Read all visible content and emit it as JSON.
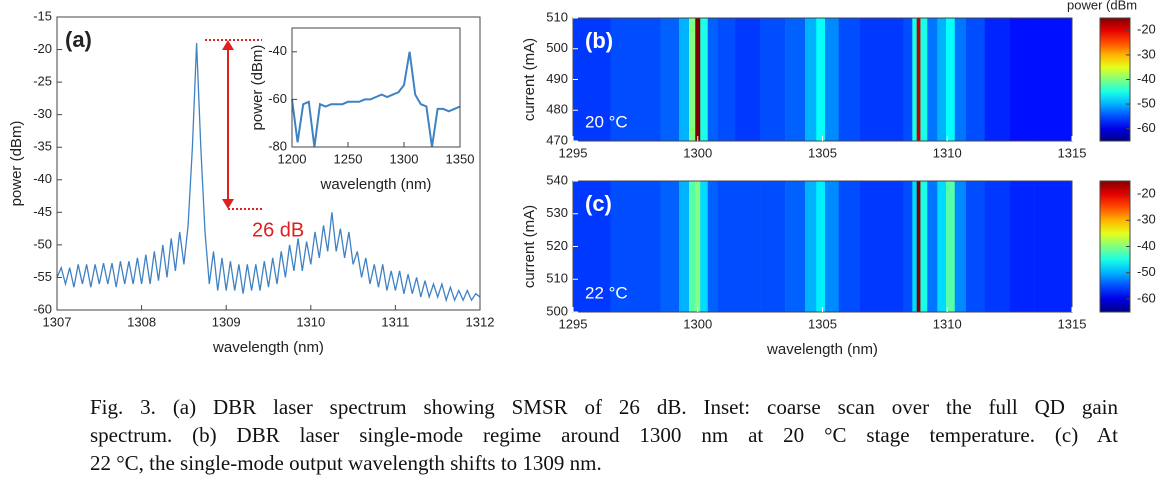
{
  "chart_data": [
    {
      "type": "line",
      "label": "(a)",
      "annotation": "26 dB",
      "xlabel": "wavelength (nm)",
      "ylabel": "power (dBm)",
      "color": "#3f82c4",
      "xlim": [
        1307,
        1312
      ],
      "xticks": [
        1307,
        1308,
        1309,
        1310,
        1311,
        1312
      ],
      "ylim": [
        -60,
        -15
      ],
      "yticks": [
        -60,
        -55,
        -50,
        -45,
        -40,
        -35,
        -30,
        -25,
        -20,
        -15
      ],
      "x": [
        1307.0,
        1307.05,
        1307.1,
        1307.15,
        1307.2,
        1307.25,
        1307.3,
        1307.35,
        1307.4,
        1307.45,
        1307.5,
        1307.55,
        1307.6,
        1307.65,
        1307.7,
        1307.75,
        1307.8,
        1307.85,
        1307.9,
        1307.95,
        1308.0,
        1308.05,
        1308.1,
        1308.15,
        1308.2,
        1308.25,
        1308.3,
        1308.35,
        1308.4,
        1308.45,
        1308.5,
        1308.55,
        1308.6,
        1308.65,
        1308.7,
        1308.75,
        1308.8,
        1308.85,
        1308.9,
        1308.95,
        1309.0,
        1309.05,
        1309.1,
        1309.15,
        1309.2,
        1309.25,
        1309.3,
        1309.35,
        1309.4,
        1309.45,
        1309.5,
        1309.55,
        1309.6,
        1309.65,
        1309.7,
        1309.75,
        1309.8,
        1309.85,
        1309.9,
        1309.95,
        1310.0,
        1310.05,
        1310.1,
        1310.15,
        1310.2,
        1310.25,
        1310.3,
        1310.35,
        1310.4,
        1310.45,
        1310.5,
        1310.55,
        1310.6,
        1310.65,
        1310.7,
        1310.75,
        1310.8,
        1310.85,
        1310.9,
        1310.95,
        1311.0,
        1311.05,
        1311.1,
        1311.15,
        1311.2,
        1311.25,
        1311.3,
        1311.35,
        1311.4,
        1311.45,
        1311.5,
        1311.55,
        1311.6,
        1311.65,
        1311.7,
        1311.75,
        1311.8,
        1311.85,
        1311.9,
        1311.95,
        1312.0
      ],
      "values": [
        -55,
        -53.5,
        -56,
        -53.5,
        -56.5,
        -53,
        -56,
        -53,
        -56.5,
        -53,
        -56,
        -52.8,
        -56,
        -52.8,
        -56.5,
        -52.5,
        -56,
        -52.5,
        -56,
        -52,
        -56,
        -51.5,
        -56,
        -51,
        -55.5,
        -50,
        -55,
        -49,
        -54,
        -48,
        -53,
        -47,
        -35,
        -19,
        -35,
        -48,
        -56,
        -51,
        -57,
        -52,
        -57,
        -52.5,
        -57,
        -53,
        -57.5,
        -53,
        -57,
        -53,
        -57,
        -52.5,
        -56.5,
        -52,
        -56,
        -51,
        -55,
        -50,
        -54,
        -49,
        -54,
        -49.5,
        -53,
        -48,
        -52,
        -47,
        -51,
        -45,
        -51,
        -47.5,
        -52,
        -48,
        -53,
        -51,
        -55,
        -52,
        -56,
        -53,
        -56.5,
        -53,
        -57,
        -54,
        -57,
        -54,
        -57.5,
        -54.5,
        -57.5,
        -55,
        -58,
        -55.5,
        -58,
        -56,
        -58,
        -56,
        -58.5,
        -56.5,
        -58.5,
        -57,
        -58.5,
        -57,
        -58.5,
        -57.5,
        -58
      ]
    },
    {
      "type": "line",
      "xlabel": "wavelength (nm)",
      "ylabel": "power (dBm)",
      "color": "#3f82c4",
      "xlim": [
        1200,
        1350
      ],
      "xticks": [
        1200,
        1250,
        1300,
        1350
      ],
      "ylim": [
        -80,
        -30
      ],
      "yticks": [
        -80,
        -60,
        -40
      ],
      "x": [
        1200,
        1205,
        1210,
        1215,
        1220,
        1225,
        1230,
        1235,
        1240,
        1245,
        1250,
        1255,
        1260,
        1265,
        1270,
        1275,
        1280,
        1285,
        1290,
        1295,
        1300,
        1305,
        1310,
        1315,
        1320,
        1325,
        1330,
        1335,
        1340,
        1345,
        1350
      ],
      "values": [
        -60,
        -78,
        -62,
        -61,
        -80,
        -62,
        -63,
        -62,
        -62,
        -62,
        -61,
        -61,
        -61,
        -60,
        -60,
        -59,
        -58,
        -59,
        -58,
        -57,
        -54,
        -40,
        -58,
        -62,
        -63,
        -80,
        -64,
        -64,
        -65,
        -64,
        -63
      ]
    },
    {
      "type": "heatmap",
      "label": "(b)",
      "annotation": "20 °C",
      "ylabel": "current (mA)",
      "xlim": [
        1295,
        1315
      ],
      "xticks": [
        1295,
        1300,
        1305,
        1310,
        1315
      ],
      "ylim": [
        470,
        510
      ],
      "yticks": [
        470,
        480,
        490,
        500,
        510
      ],
      "colorbar": {
        "title": "power (dBm",
        "clim": [
          -65,
          -15
        ],
        "ticks": [
          -60,
          -50,
          -40,
          -30,
          -20
        ]
      },
      "x": [
        1295,
        1296,
        1297,
        1298,
        1299,
        1299.5,
        1299.8,
        1300,
        1300.2,
        1300.6,
        1301,
        1302,
        1303,
        1304,
        1304.6,
        1304.9,
        1305.3,
        1306,
        1307,
        1308,
        1308.5,
        1308.7,
        1308.85,
        1309.0,
        1309.4,
        1309.8,
        1310.1,
        1310.5,
        1311,
        1312,
        1313,
        1314,
        1315
      ],
      "values": [
        -56,
        -56,
        -55,
        -55,
        -54,
        -50,
        -40,
        -15,
        -45,
        -54,
        -55,
        -56,
        -55,
        -54,
        -50,
        -46,
        -52,
        -55,
        -56,
        -56,
        -55,
        -45,
        -18,
        -45,
        -53,
        -50,
        -46,
        -53,
        -55,
        -57,
        -58,
        -58,
        -58
      ]
    },
    {
      "type": "heatmap",
      "label": "(c)",
      "annotation": "22 °C",
      "xlabel": "wavelength (nm)",
      "ylabel": "current (mA)",
      "xlim": [
        1295,
        1315
      ],
      "xticks": [
        1295,
        1300,
        1305,
        1310,
        1315
      ],
      "ylim": [
        500,
        540
      ],
      "yticks": [
        500,
        510,
        520,
        530,
        540
      ],
      "colorbar": {
        "clim": [
          -65,
          -15
        ],
        "ticks": [
          -60,
          -50,
          -40,
          -30,
          -20
        ]
      },
      "x": [
        1295,
        1296,
        1297,
        1298,
        1299,
        1299.5,
        1299.8,
        1300,
        1300.2,
        1300.6,
        1301,
        1302,
        1303,
        1304,
        1304.6,
        1304.9,
        1305.3,
        1306,
        1307,
        1308,
        1308.5,
        1308.7,
        1308.85,
        1309.0,
        1309.4,
        1309.8,
        1310.1,
        1310.5,
        1311,
        1312,
        1313,
        1314,
        1315
      ],
      "values": [
        -56,
        -56,
        -55,
        -55,
        -54,
        -50,
        -42,
        -40,
        -48,
        -54,
        -55,
        -55,
        -55,
        -54,
        -50,
        -47,
        -52,
        -55,
        -56,
        -56,
        -55,
        -48,
        -15,
        -45,
        -53,
        -48,
        -42,
        -52,
        -55,
        -56,
        -57,
        -57,
        -57
      ]
    }
  ],
  "caption": [
    "Fig. 3. (a) DBR laser spectrum showing SMSR of 26 dB. Inset: coarse scan over the full QD gain",
    "spectrum. (b) DBR laser single-mode regime around 1300 nm at 20 °C stage temperature. (c) At",
    "22 °C, the single-mode output wavelength shifts to 1309 nm."
  ]
}
